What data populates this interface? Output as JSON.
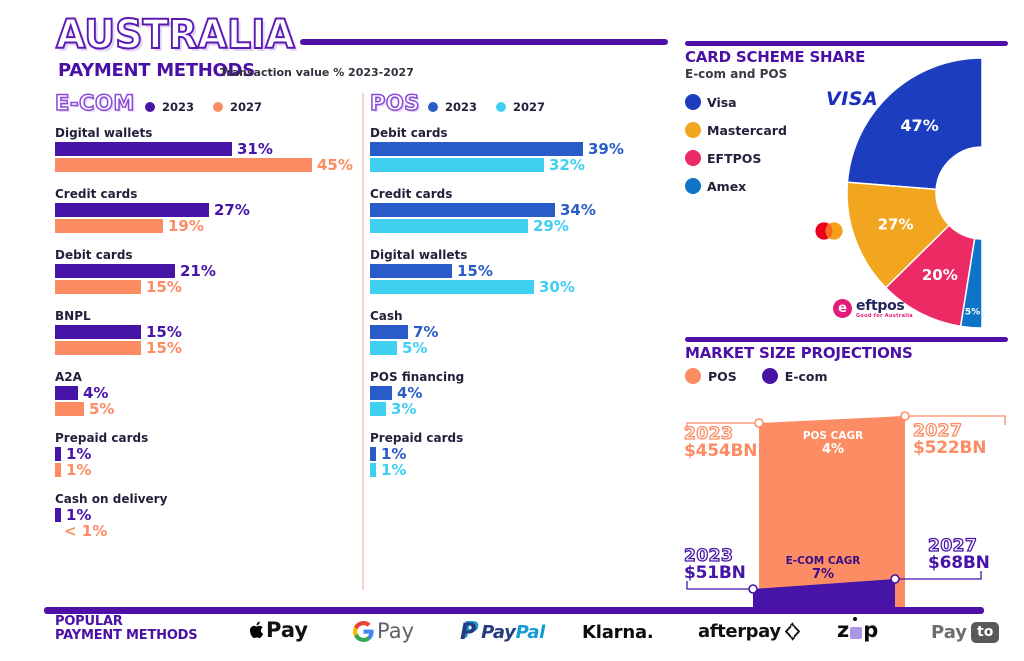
{
  "header": {
    "title": "AUSTRALIA",
    "subtitle": "PAYMENT METHODS",
    "note": "Transaction value % 2023-2027"
  },
  "ecom": {
    "title": "E-COM",
    "legend": [
      {
        "label": "2023",
        "color": "#4714A8"
      },
      {
        "label": "2027",
        "color": "#FB8C64"
      }
    ],
    "rows": [
      {
        "label": "Digital wallets",
        "values": [
          31,
          45
        ],
        "displays": [
          "31%",
          "45%"
        ]
      },
      {
        "label": "Credit cards",
        "values": [
          27,
          19
        ],
        "displays": [
          "27%",
          "19%"
        ]
      },
      {
        "label": "Debit cards",
        "values": [
          21,
          15
        ],
        "displays": [
          "21%",
          "15%"
        ]
      },
      {
        "label": "BNPL",
        "values": [
          15,
          15
        ],
        "displays": [
          "15%",
          "15%"
        ]
      },
      {
        "label": "A2A",
        "values": [
          4,
          5
        ],
        "displays": [
          "4%",
          "5%"
        ]
      },
      {
        "label": "Prepaid cards",
        "values": [
          1,
          1
        ],
        "displays": [
          "1%",
          "1%"
        ]
      },
      {
        "label": "Cash on delivery",
        "values": [
          1,
          0
        ],
        "displays": [
          "1%",
          "< 1%"
        ]
      }
    ]
  },
  "pos": {
    "title": "POS",
    "legend": [
      {
        "label": "2023",
        "color": "#2A5CC9"
      },
      {
        "label": "2027",
        "color": "#3FCFF0"
      }
    ],
    "rows": [
      {
        "label": "Debit cards",
        "values": [
          39,
          32
        ],
        "displays": [
          "39%",
          "32%"
        ]
      },
      {
        "label": "Credit cards",
        "values": [
          34,
          29
        ],
        "displays": [
          "34%",
          "29%"
        ]
      },
      {
        "label": "Digital wallets",
        "values": [
          15,
          30
        ],
        "displays": [
          "15%",
          "30%"
        ]
      },
      {
        "label": "Cash",
        "values": [
          7,
          5
        ],
        "displays": [
          "7%",
          "5%"
        ]
      },
      {
        "label": "POS financing",
        "values": [
          4,
          3
        ],
        "displays": [
          "4%",
          "3%"
        ]
      },
      {
        "label": "Prepaid cards",
        "values": [
          1,
          1
        ],
        "displays": [
          "1%",
          "1%"
        ]
      }
    ]
  },
  "card_scheme": {
    "title": "CARD SCHEME SHARE",
    "subtitle": "E-com and POS",
    "legend": [
      {
        "label": "Visa",
        "color": "#1C3EBE"
      },
      {
        "label": "Mastercard",
        "color": "#F2A51E"
      },
      {
        "label": "EFTPOS",
        "color": "#EC2A63"
      },
      {
        "label": "Amex",
        "color": "#0E74C8"
      }
    ],
    "slices": [
      {
        "label": "Visa",
        "value": 47,
        "display": "47%",
        "color": "#1C3EBE"
      },
      {
        "label": "Mastercard",
        "value": 27,
        "display": "27%",
        "color": "#F2A51E"
      },
      {
        "label": "EFTPOS",
        "value": 20,
        "display": "20%",
        "color": "#EC2A63"
      },
      {
        "label": "Amex",
        "value": 5,
        "display": "5%",
        "color": "#0E74C8"
      }
    ],
    "visa_wordmark": "VISA",
    "eftpos_wordmark": "eftpos",
    "eftpos_tagline": "Good for Australia"
  },
  "market": {
    "title": "MARKET SIZE PROJECTIONS",
    "legend": [
      {
        "label": "POS",
        "color": "#FB8C64"
      },
      {
        "label": "E-com",
        "color": "#4714A8"
      }
    ],
    "pos": {
      "start_year": "2023",
      "start_value": "$454BN",
      "end_year": "2027",
      "end_value": "$522BN",
      "cagr_label": "POS CAGR",
      "cagr_value": "4%"
    },
    "ecom": {
      "start_year": "2023",
      "start_value": "$51BN",
      "end_year": "2027",
      "end_value": "$68BN",
      "cagr_label": "E-COM CAGR",
      "cagr_value": "7%"
    }
  },
  "footer": {
    "heading_line1": "POPULAR",
    "heading_line2": "PAYMENT METHODS",
    "logos": {
      "applepay": "Pay",
      "gpay": "Pay",
      "paypal_pay": "Pay",
      "paypal_pal": "Pal",
      "klarna": "Klarna.",
      "afterpay": "afterpay",
      "zip_z": "z",
      "zip_p": "p",
      "payto_pay": "Pay",
      "payto_badge": "to"
    }
  },
  "chart_data": [
    {
      "type": "bar",
      "title": "E-COM",
      "subtitle": "Transaction value % 2023-2027",
      "orientation": "horizontal",
      "categories": [
        "Digital wallets",
        "Credit cards",
        "Debit cards",
        "BNPL",
        "A2A",
        "Prepaid cards",
        "Cash on delivery"
      ],
      "series": [
        {
          "name": "2023",
          "color": "#4714A8",
          "values": [
            31,
            27,
            21,
            15,
            4,
            1,
            1
          ]
        },
        {
          "name": "2027",
          "color": "#FB8C64",
          "values": [
            45,
            19,
            15,
            15,
            5,
            1,
            0.5
          ]
        }
      ],
      "value_unit": "%",
      "xlim": [
        0,
        50
      ],
      "grid": false,
      "legend_position": "top"
    },
    {
      "type": "bar",
      "title": "POS",
      "subtitle": "Transaction value % 2023-2027",
      "orientation": "horizontal",
      "categories": [
        "Debit cards",
        "Credit cards",
        "Digital wallets",
        "Cash",
        "POS financing",
        "Prepaid cards"
      ],
      "series": [
        {
          "name": "2023",
          "color": "#2A5CC9",
          "values": [
            39,
            34,
            15,
            7,
            4,
            1
          ]
        },
        {
          "name": "2027",
          "color": "#3FCFF0",
          "values": [
            32,
            29,
            30,
            5,
            3,
            1
          ]
        }
      ],
      "value_unit": "%",
      "xlim": [
        0,
        50
      ],
      "grid": false,
      "legend_position": "top"
    },
    {
      "type": "pie",
      "title": "CARD SCHEME SHARE",
      "subtitle": "E-com and POS",
      "labels": [
        "Visa",
        "Mastercard",
        "EFTPOS",
        "Amex"
      ],
      "values": [
        47,
        27,
        20,
        5
      ],
      "colors": [
        "#1C3EBE",
        "#F2A51E",
        "#EC2A63",
        "#0E74C8"
      ],
      "style": "half-donut",
      "legend_position": "left"
    },
    {
      "type": "area",
      "title": "MARKET SIZE PROJECTIONS",
      "x": [
        2023,
        2027
      ],
      "series": [
        {
          "name": "POS",
          "color": "#FB8C64",
          "values_bn": [
            454,
            522
          ],
          "cagr": "4%"
        },
        {
          "name": "E-com",
          "color": "#4714A8",
          "values_bn": [
            51,
            68
          ],
          "cagr": "7%"
        }
      ],
      "value_unit": "$BN",
      "legend_position": "top"
    }
  ]
}
